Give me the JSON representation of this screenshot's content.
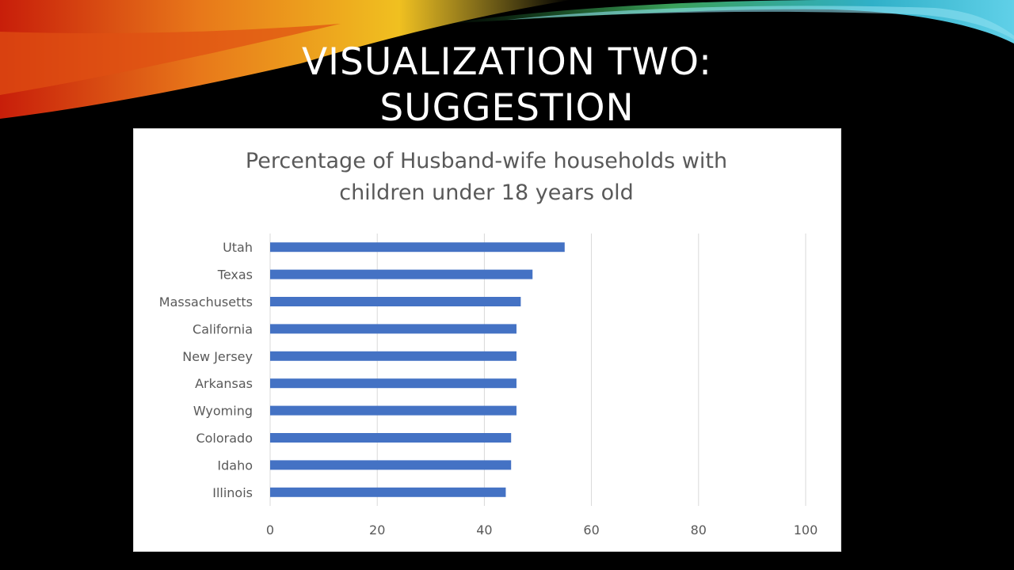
{
  "slide": {
    "title_line1": "VISUALIZATION TWO:",
    "title_line2": "SUGGESTION"
  },
  "colors": {
    "bar": "#4472C4",
    "grid": "#d9d9d9",
    "text": "#595959"
  },
  "chart_data": {
    "type": "bar",
    "orientation": "horizontal",
    "title_lines": [
      "Percentage of Husband-wife households with",
      "children under 18 years old"
    ],
    "categories": [
      "Utah",
      "Texas",
      "Massachusetts",
      "California",
      "New Jersey",
      "Arkansas",
      "Wyoming",
      "Colorado",
      "Idaho",
      "Illinois"
    ],
    "values": [
      55,
      49,
      46.8,
      46,
      46,
      46,
      46,
      45,
      45,
      44
    ],
    "xlim": [
      0,
      100
    ],
    "xticks": [
      "0",
      "20",
      "40",
      "60",
      "80",
      "100"
    ],
    "grid": "vertical",
    "legend": "none"
  }
}
